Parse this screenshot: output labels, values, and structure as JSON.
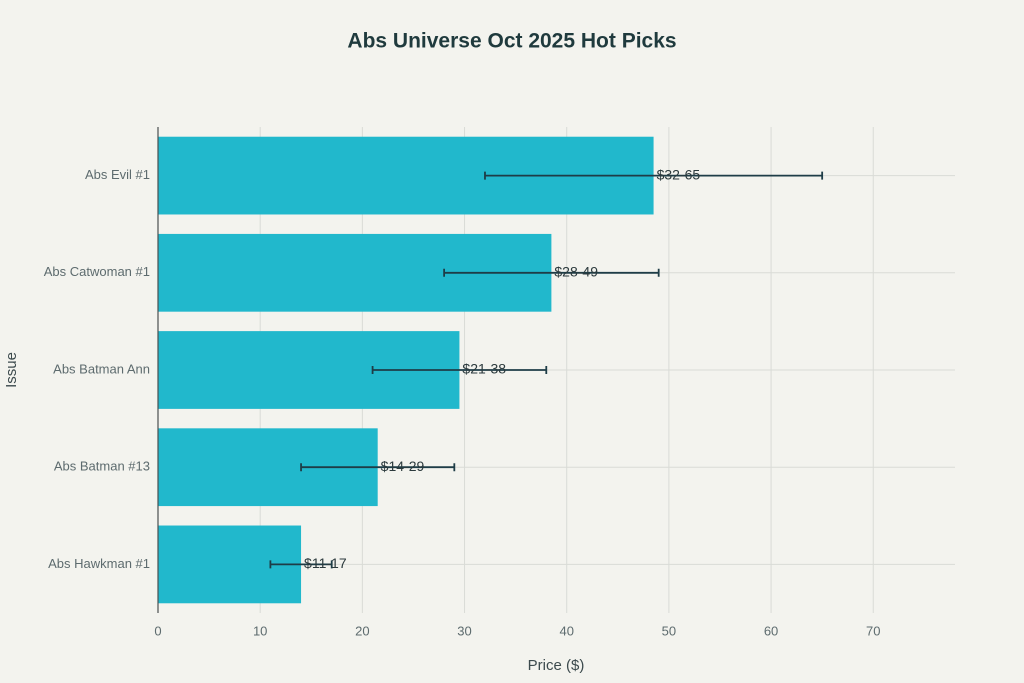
{
  "chart_data": {
    "type": "hbar",
    "title": "Abs Universe Oct 2025 Hot Picks",
    "x_label": "Price ($)",
    "y_label": "Issue",
    "categories": [
      "Abs Evil #1",
      "Abs Catwoman #1",
      "Abs Batman Ann",
      "Abs Batman #13",
      "Abs Hawkman #1"
    ],
    "values": [
      48.5,
      38.5,
      29.5,
      21.5,
      14
    ],
    "errors": [
      16.5,
      10.5,
      8.5,
      7.5,
      3
    ],
    "range_labels": [
      "$32-65",
      "$28-49",
      "$21-38",
      "$14-29",
      "$11-17"
    ],
    "color": "#21b8cc",
    "error_color": "#1e3d47",
    "xlim": [
      0,
      78
    ],
    "xticks": [
      0,
      10,
      20,
      30,
      40,
      50,
      60,
      70
    ],
    "grid": true
  }
}
